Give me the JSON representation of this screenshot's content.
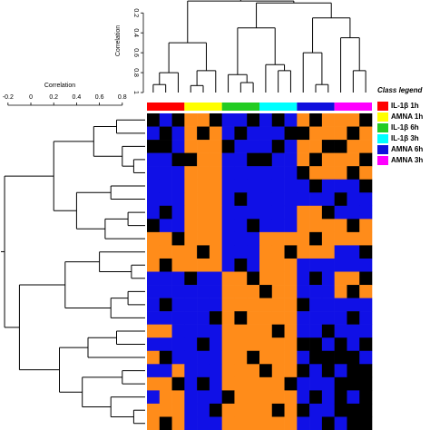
{
  "chart_data": {
    "type": "heatmap",
    "class_legend_title": "Class legend",
    "classes": [
      {
        "name": "IL-1β 1h",
        "color": "#ff0000"
      },
      {
        "name": "AMNA 1h",
        "color": "#ffff00"
      },
      {
        "name": "IL-1β 6h",
        "color": "#22cc22"
      },
      {
        "name": "IL-1β 3h",
        "color": "#00ffff"
      },
      {
        "name": "AMNA 6h",
        "color": "#1010dd"
      },
      {
        "name": "AMNA 3h",
        "color": "#ff00ff"
      }
    ],
    "colors": [
      "#1010e6",
      "#000000",
      "#ff8c1a"
    ],
    "zlim": [
      -1,
      1
    ],
    "matrix": [
      [
        0,
        -1,
        0,
        1,
        1,
        0,
        -1,
        -1,
        0,
        -1,
        0,
        -1,
        1,
        0,
        1,
        1,
        1,
        0
      ],
      [
        -1,
        0,
        -1,
        1,
        0,
        1,
        -1,
        0,
        -1,
        -1,
        -1,
        0,
        0,
        1,
        1,
        1,
        0,
        1
      ],
      [
        0,
        0,
        -1,
        1,
        1,
        1,
        0,
        -1,
        -1,
        -1,
        0,
        -1,
        1,
        1,
        0,
        0,
        1,
        1
      ],
      [
        -1,
        -1,
        0,
        0,
        1,
        1,
        -1,
        -1,
        0,
        0,
        -1,
        -1,
        1,
        0,
        1,
        1,
        1,
        0
      ],
      [
        -1,
        -1,
        -1,
        1,
        1,
        1,
        -1,
        -1,
        -1,
        -1,
        -1,
        -1,
        0,
        1,
        1,
        1,
        0,
        1
      ],
      [
        -1,
        -1,
        -1,
        1,
        1,
        1,
        -1,
        -1,
        -1,
        -1,
        -1,
        -1,
        -1,
        0,
        -1,
        -1,
        -1,
        0
      ],
      [
        -1,
        -1,
        -1,
        1,
        1,
        1,
        -1,
        0,
        -1,
        -1,
        -1,
        -1,
        -1,
        -1,
        -1,
        0,
        -1,
        -1
      ],
      [
        -1,
        0,
        -1,
        1,
        1,
        1,
        -1,
        -1,
        -1,
        -1,
        -1,
        -1,
        1,
        1,
        0,
        -1,
        -1,
        -1
      ],
      [
        0,
        -1,
        -1,
        1,
        1,
        1,
        -1,
        -1,
        0,
        -1,
        -1,
        -1,
        1,
        1,
        1,
        1,
        0,
        1
      ],
      [
        1,
        1,
        0,
        1,
        1,
        1,
        -1,
        -1,
        -1,
        1,
        1,
        1,
        1,
        0,
        1,
        1,
        1,
        1
      ],
      [
        1,
        1,
        1,
        1,
        0,
        1,
        -1,
        -1,
        -1,
        1,
        1,
        0,
        1,
        1,
        1,
        -1,
        -1,
        0
      ],
      [
        1,
        0,
        1,
        1,
        1,
        1,
        -1,
        0,
        -1,
        1,
        1,
        1,
        -1,
        -1,
        -1,
        -1,
        -1,
        -1
      ],
      [
        -1,
        -1,
        -1,
        0,
        -1,
        -1,
        1,
        1,
        0,
        1,
        1,
        1,
        -1,
        0,
        -1,
        1,
        1,
        0
      ],
      [
        -1,
        -1,
        -1,
        -1,
        -1,
        -1,
        1,
        1,
        1,
        0,
        1,
        1,
        -1,
        -1,
        -1,
        1,
        0,
        1
      ],
      [
        -1,
        0,
        -1,
        -1,
        -1,
        -1,
        1,
        1,
        1,
        1,
        1,
        1,
        0,
        -1,
        -1,
        -1,
        -1,
        -1
      ],
      [
        -1,
        -1,
        -1,
        -1,
        -1,
        0,
        1,
        0,
        1,
        1,
        1,
        1,
        -1,
        -1,
        -1,
        -1,
        0,
        -1
      ],
      [
        1,
        1,
        -1,
        -1,
        -1,
        -1,
        1,
        1,
        1,
        1,
        0,
        1,
        -1,
        -1,
        0,
        -1,
        -1,
        -1
      ],
      [
        -1,
        -1,
        -1,
        -1,
        0,
        -1,
        1,
        1,
        1,
        1,
        1,
        1,
        0,
        0,
        -1,
        0,
        -1,
        0
      ],
      [
        1,
        0,
        -1,
        -1,
        -1,
        -1,
        1,
        1,
        0,
        1,
        1,
        1,
        -1,
        0,
        0,
        0,
        0,
        -1
      ],
      [
        -1,
        -1,
        1,
        -1,
        -1,
        -1,
        1,
        1,
        1,
        0,
        1,
        1,
        0,
        -1,
        0,
        -1,
        0,
        0
      ],
      [
        1,
        1,
        0,
        -1,
        0,
        -1,
        1,
        1,
        1,
        1,
        1,
        0,
        -1,
        -1,
        -1,
        0,
        0,
        0
      ],
      [
        -1,
        1,
        1,
        -1,
        -1,
        -1,
        0,
        1,
        1,
        1,
        1,
        1,
        -1,
        0,
        -1,
        0,
        -1,
        0
      ],
      [
        1,
        1,
        1,
        -1,
        -1,
        0,
        1,
        1,
        1,
        1,
        0,
        1,
        0,
        -1,
        -1,
        0,
        0,
        0
      ],
      [
        1,
        0,
        1,
        -1,
        -1,
        -1,
        1,
        1,
        1,
        1,
        1,
        1,
        -1,
        -1,
        0,
        -1,
        0,
        0
      ]
    ],
    "top_dendrogram": {
      "axis_label": "Correlation",
      "ylim": [
        0.07,
        1
      ],
      "yticks": [
        0.2,
        0.4,
        0.6,
        0.8,
        1
      ],
      "tree": {
        "height": 0.08,
        "children": [
          {
            "height": 0.5,
            "children": [
              {
                "height": 0.8,
                "children": [
                  {
                    "height": 0.92,
                    "children": [
                      1,
                      1
                    ]
                  },
                  1
                ]
              },
              {
                "height": 0.78,
                "children": [
                  {
                    "height": 0.93,
                    "children": [
                      1,
                      1
                    ]
                  },
                  1
                ]
              }
            ]
          },
          {
            "height": 0.1,
            "children": [
              {
                "height": 0.35,
                "children": [
                  {
                    "height": 0.82,
                    "children": [
                      1,
                      {
                        "height": 0.9,
                        "children": [
                          1,
                          1
                        ]
                      }
                    ]
                  },
                  {
                    "height": 0.72,
                    "children": [
                      1,
                      {
                        "height": 0.78,
                        "children": [
                          1,
                          1
                        ]
                      }
                    ]
                  }
                ]
              },
              {
                "height": 0.25,
                "children": [
                  {
                    "height": 0.6,
                    "children": [
                      1,
                      {
                        "height": 0.92,
                        "children": [
                          1,
                          1
                        ]
                      }
                    ]
                  },
                  {
                    "height": 0.45,
                    "children": [
                      1,
                      {
                        "height": 0.78,
                        "children": [
                          1,
                          1
                        ]
                      }
                    ]
                  }
                ]
              }
            ]
          }
        ]
      }
    },
    "left_dendrogram": {
      "axis_label": "Correlation",
      "xlim": [
        -0.27,
        1
      ],
      "xticks": [
        -0.2,
        0,
        0.2,
        0.4,
        0.6,
        0.8
      ],
      "tree": {
        "height": -0.23,
        "children": [
          {
            "height": 0.2,
            "children": [
              {
                "height": 0.55,
                "children": [
                  {
                    "height": 0.75,
                    "children": [
                      1,
                      1
                    ]
                  },
                  {
                    "height": 0.8,
                    "children": [
                      1,
                      {
                        "height": 0.9,
                        "children": [
                          1,
                          1
                        ]
                      }
                    ]
                  }
                ]
              },
              {
                "height": 0.4,
                "children": [
                  {
                    "height": 0.7,
                    "children": [
                      1,
                      1
                    ]
                  },
                  {
                    "height": 0.65,
                    "children": [
                      {
                        "height": 0.85,
                        "children": [
                          1,
                          1
                        ]
                      },
                      1
                    ]
                  }
                ]
              }
            ]
          },
          {
            "height": -0.1,
            "children": [
              {
                "height": 0.3,
                "children": [
                  {
                    "height": 0.6,
                    "children": [
                      1,
                      {
                        "height": 0.88,
                        "children": [
                          1,
                          1
                        ]
                      }
                    ]
                  },
                  {
                    "height": 0.7,
                    "children": [
                      {
                        "height": 0.85,
                        "children": [
                          1,
                          1
                        ]
                      },
                      1
                    ]
                  }
                ]
              },
              {
                "height": 0.25,
                "children": [
                  {
                    "height": 0.5,
                    "children": [
                      {
                        "height": 0.75,
                        "children": [
                          1,
                          1
                        ]
                      },
                      1
                    ]
                  },
                  {
                    "height": 0.45,
                    "children": [
                      {
                        "height": 0.8,
                        "children": [
                          1,
                          1
                        ]
                      },
                      {
                        "height": 0.7,
                        "children": [
                          1,
                          {
                            "height": 0.9,
                            "children": [
                              1,
                              1
                            ]
                          }
                        ]
                      }
                    ]
                  }
                ]
              }
            ]
          }
        ]
      }
    }
  }
}
